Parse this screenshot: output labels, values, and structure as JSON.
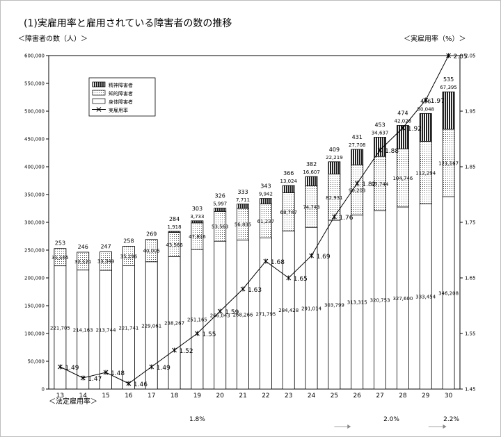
{
  "title": "(1)実雇用率と雇用されている障害者の数の推移",
  "y_left_label": "＜障害者の数（人）＞",
  "y_right_label": "＜実雇用率（%）＞",
  "x_bottom_label": "＜法定雇用率＞",
  "chart_data": {
    "type": "bar",
    "stacked": true,
    "categories": [
      "13",
      "14",
      "15",
      "16",
      "17",
      "18",
      "19",
      "20",
      "21",
      "22",
      "23",
      "24",
      "25",
      "26",
      "27",
      "28",
      "29",
      "30"
    ],
    "series": [
      {
        "name": "身体障害者",
        "fill": "white",
        "values": [
          221705,
          214163,
          213744,
          221741,
          229061,
          238267,
          251165,
          266043,
          268266,
          271795,
          284428,
          291014,
          303799,
          313315,
          320753,
          327600,
          333454,
          346208
        ],
        "labels": [
          "221,705",
          "214,163",
          "213,744",
          "221,741",
          "229,061",
          "238,267",
          "251,165",
          "266,043",
          "268,266",
          "271,795",
          "284,428",
          "291,014",
          "303,799",
          "313,315",
          "320,753",
          "327,600",
          "333,454",
          "346,208"
        ]
      },
      {
        "name": "知的障害者",
        "fill": "dotted",
        "values": [
          31165,
          32121,
          33349,
          35196,
          40005,
          43566,
          47816,
          53563,
          56835,
          61237,
          68747,
          74743,
          82931,
          90203,
          97744,
          104746,
          112294,
          121167
        ],
        "labels": [
          "31,165",
          "32,121",
          "33,349",
          "35,196",
          "40,005",
          "43,566",
          "47,816",
          "53,563",
          "56,835",
          "61,237",
          "68,747",
          "74,743",
          "82,931",
          "90,203",
          "97,744",
          "104,746",
          "112,294",
          "121,167"
        ]
      },
      {
        "name": "精神障害者",
        "fill": "striped",
        "values": [
          0,
          0,
          0,
          0,
          0,
          1918,
          3733,
          5997,
          7711,
          9942,
          13024,
          16607,
          22219,
          27708,
          34637,
          42028,
          50048,
          67395
        ],
        "labels": [
          "",
          "",
          "",
          "",
          "",
          "1,918",
          "3,733",
          "5,997",
          "7,711",
          "9,942",
          "13,024",
          "16,607",
          "22,219",
          "27,708",
          "34,637",
          "42,028",
          "50,048",
          "67,395"
        ]
      }
    ],
    "totals_thousands": [
      "253",
      "246",
      "247",
      "258",
      "269",
      "284",
      "303",
      "326",
      "333",
      "343",
      "366",
      "382",
      "409",
      "431",
      "453",
      "474",
      "496",
      "535"
    ],
    "rate_series": {
      "name": "実雇用率",
      "values": [
        1.49,
        1.47,
        1.48,
        1.46,
        1.49,
        1.52,
        1.55,
        1.59,
        1.63,
        1.68,
        1.65,
        1.69,
        1.76,
        1.82,
        1.88,
        1.92,
        1.97,
        2.05
      ],
      "labels": [
        "1.49",
        "1.47",
        "1.48",
        "1.46",
        "1.49",
        "1.52",
        "1.55",
        "1.59",
        "1.63",
        "1.68",
        "1.65",
        "1.69",
        "1.76",
        "1.82",
        "1.88",
        "1.92",
        "1.97",
        "2.05"
      ]
    },
    "y_left": {
      "min": 0,
      "max": 600000,
      "ticks": [
        "0",
        "50,000",
        "100,000",
        "150,000",
        "200,000",
        "250,000",
        "300,000",
        "350,000",
        "400,000",
        "450,000",
        "500,000",
        "550,000",
        "600,000"
      ]
    },
    "y_right": {
      "min": 1.45,
      "max": 2.05,
      "ticks": [
        "1.45",
        "1.55",
        "1.65",
        "1.75",
        "1.85",
        "1.95",
        "2.05"
      ]
    },
    "legend": [
      "精神障害者",
      "知的障害者",
      "身体障害者",
      "実雇用率"
    ],
    "legal_rate": {
      "labels": [
        "1.8%",
        "2.0%",
        "2.2%"
      ],
      "spans": [
        {
          "from": 0,
          "to": 12
        },
        {
          "from": 13,
          "to": 16
        },
        {
          "from": 17,
          "to": 17
        }
      ]
    }
  }
}
